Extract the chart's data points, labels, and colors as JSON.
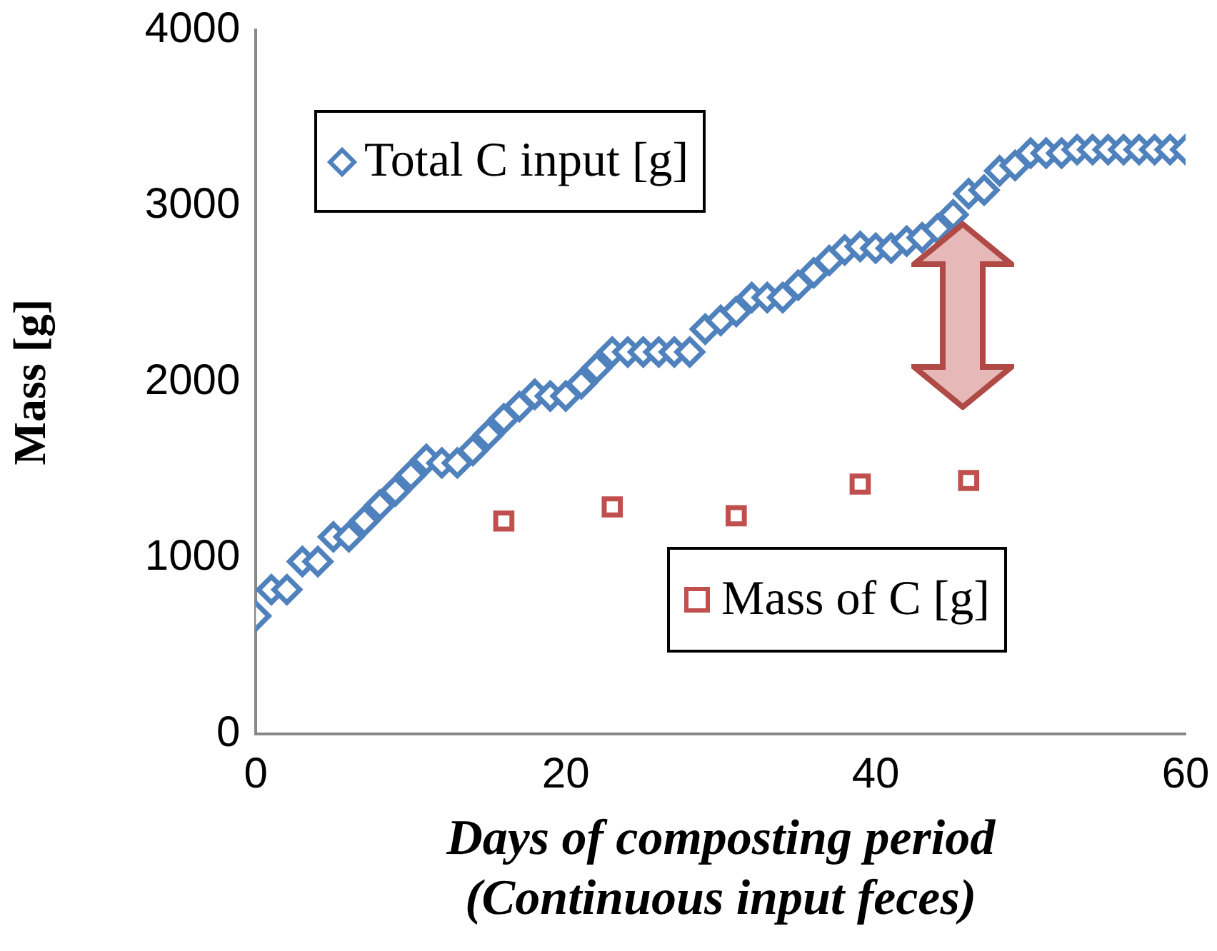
{
  "chart_data": {
    "type": "scatter",
    "xlabel": "Days of composting period\n(Continuous input feces)",
    "ylabel": "Mass [g]",
    "xlim": [
      0,
      60
    ],
    "xticks": [
      0,
      20,
      40,
      60
    ],
    "ylim": [
      0,
      4000
    ],
    "yticks": [
      0,
      1000,
      2000,
      3000,
      4000
    ],
    "grid": false,
    "legend": "left",
    "series": [
      {
        "name": "Total C input [g]",
        "color": "#4f81bd",
        "marker": "diamond",
        "x": [
          0,
          1,
          2,
          3,
          4,
          5,
          6,
          7,
          8,
          9,
          10,
          11,
          12,
          13,
          14,
          15,
          16,
          17,
          18,
          19,
          20,
          21,
          22,
          23,
          24,
          25,
          26,
          27,
          28,
          29,
          30,
          31,
          32,
          33,
          34,
          35,
          36,
          37,
          38,
          39,
          40,
          41,
          42,
          43,
          44,
          45,
          46,
          47,
          48,
          49,
          50,
          51,
          52,
          53,
          54,
          55,
          56,
          57,
          58,
          59,
          60
        ],
        "values": [
          670,
          820,
          820,
          980,
          980,
          1120,
          1120,
          1210,
          1300,
          1380,
          1470,
          1560,
          1540,
          1540,
          1610,
          1700,
          1790,
          1860,
          1930,
          1920,
          1920,
          1990,
          2080,
          2170,
          2170,
          2170,
          2170,
          2170,
          2170,
          2300,
          2350,
          2400,
          2480,
          2480,
          2480,
          2550,
          2620,
          2690,
          2750,
          2770,
          2760,
          2760,
          2800,
          2820,
          2870,
          2950,
          3070,
          3090,
          3200,
          3230,
          3300,
          3300,
          3300,
          3320,
          3320,
          3320,
          3320,
          3320,
          3320,
          3320,
          3320
        ]
      },
      {
        "name": "Mass of C [g]",
        "color": "#c0504d",
        "marker": "square",
        "x": [
          16,
          23,
          31,
          39,
          46
        ],
        "values": [
          1210,
          1290,
          1240,
          1420,
          1440
        ]
      }
    ]
  }
}
